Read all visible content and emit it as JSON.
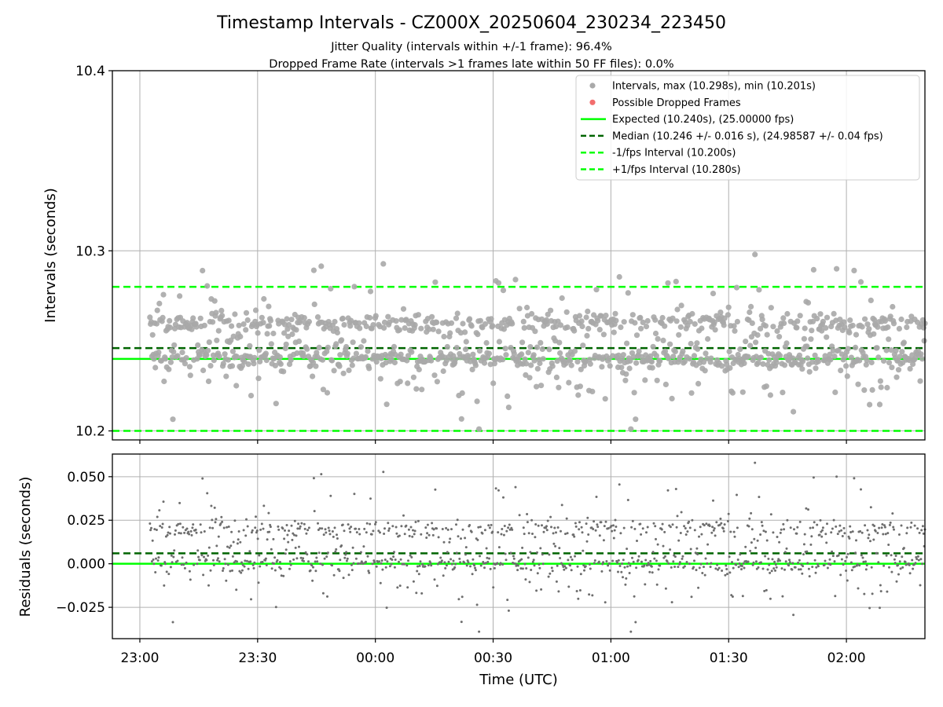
{
  "figure": {
    "title": "Timestamp Intervals - CZ000X_20250604_230234_223450",
    "subtitle_line1": "Jitter Quality (intervals within +/-1 frame): 96.4%",
    "subtitle_line2": "Dropped Frame Rate (intervals >1 frames late within 50 FF files): 0.0%"
  },
  "chart_data": [
    {
      "type": "scatter",
      "panel": "intervals",
      "ylabel": "Intervals (seconds)",
      "xlabel": "",
      "ylim": [
        10.195,
        10.4
      ],
      "yticks": [
        10.2,
        10.3,
        10.4
      ],
      "ytick_labels": [
        "10.2",
        "10.3",
        "10.4"
      ],
      "x_range": [
        "22:53",
        "02:20"
      ],
      "xticks": [
        "23:00",
        "23:30",
        "00:00",
        "00:30",
        "01:00",
        "01:30",
        "02:00"
      ],
      "grid": true,
      "legend_position": "top-right",
      "legend": [
        {
          "label": "Intervals, max (10.298s), min (10.201s)",
          "color": "#a9a9a9",
          "style": "dot"
        },
        {
          "label": "Possible Dropped Frames",
          "color": "#f26d6d",
          "style": "dot"
        },
        {
          "label": "Expected (10.240s), (25.00000 fps)",
          "color": "#00ff00",
          "style": "solid"
        },
        {
          "label": "Median (10.246 +/- 0.016 s), (24.98587 +/- 0.04 fps)",
          "color": "#006400",
          "style": "dashed"
        },
        {
          "label": "-1/fps Interval (10.200s)",
          "color": "#00ff00",
          "style": "dashed"
        },
        {
          "label": "+1/fps Interval (10.280s)",
          "color": "#00ff00",
          "style": "dashed"
        }
      ],
      "reference_lines": {
        "expected": 10.24,
        "median": 10.246,
        "minus_one_fps": 10.2,
        "plus_one_fps": 10.28
      },
      "series": [
        {
          "style": "noisy-scatter",
          "time_start": "23:02:34",
          "time_end": "02:20:00",
          "count": 1150,
          "max": 10.298,
          "min": 10.201,
          "cluster_levels": [
            10.24,
            10.26
          ],
          "color": "#a9a9a9"
        }
      ]
    },
    {
      "type": "scatter",
      "panel": "residuals",
      "ylabel": "Residuals (seconds)",
      "xlabel": "Time (UTC)",
      "ylim": [
        -0.043,
        0.063
      ],
      "yticks": [
        -0.025,
        0.0,
        0.025,
        0.05
      ],
      "ytick_labels": [
        "−0.025",
        "0.000",
        "0.025",
        "0.050"
      ],
      "x_range": [
        "22:53",
        "02:20"
      ],
      "xticks": [
        "23:00",
        "23:30",
        "00:00",
        "00:30",
        "01:00",
        "01:30",
        "02:00"
      ],
      "grid": true,
      "reference_lines": {
        "zero": 0.0,
        "median_offset": 0.006
      },
      "series": [
        {
          "style": "residuals-of-intervals",
          "expected": 10.24,
          "color": "#6e6e6e"
        }
      ]
    }
  ],
  "colors": {
    "interval_point": "#a9a9a9",
    "residual_point": "#6e6e6e",
    "expected_line": "#00ff00",
    "median_line": "#006400",
    "grid": "#b0b0b0"
  }
}
